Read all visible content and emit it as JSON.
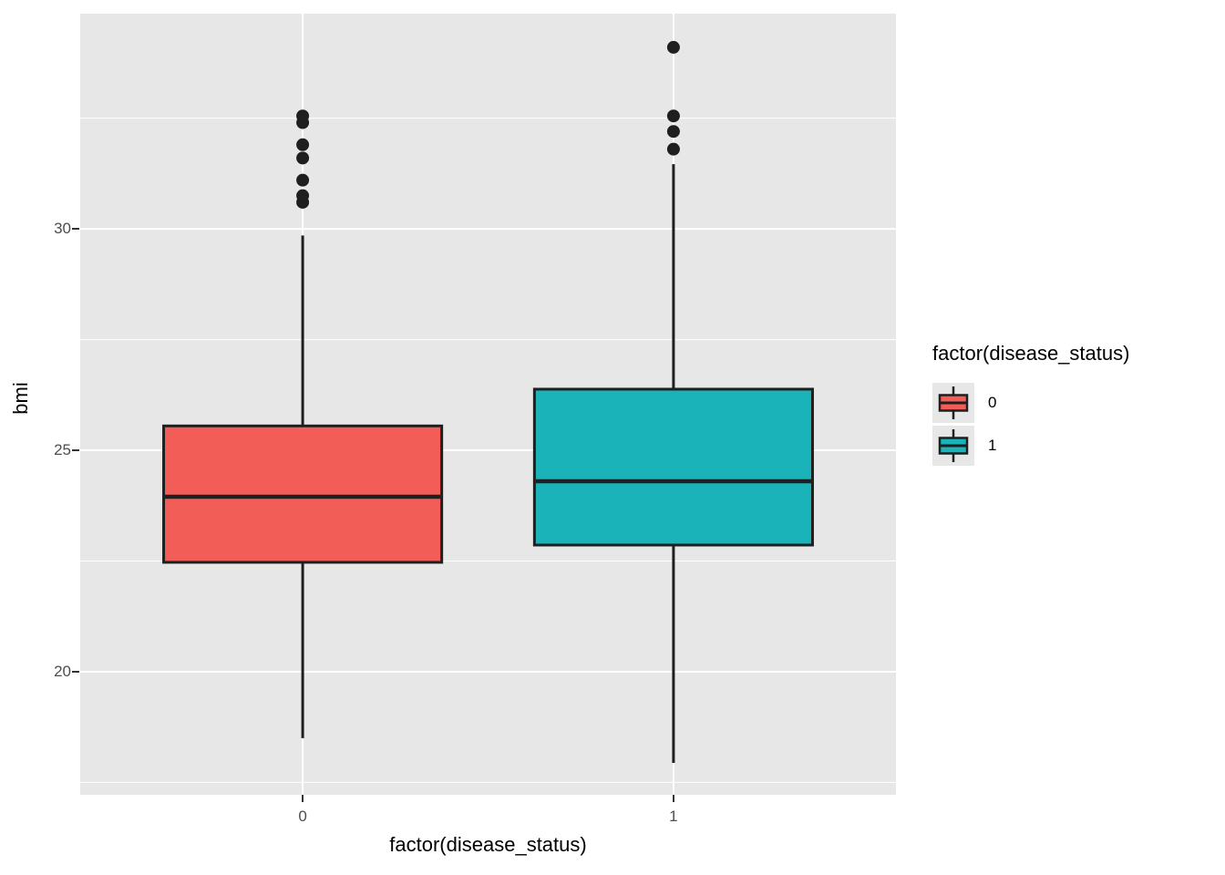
{
  "figure": {
    "background": "#FFFFFF",
    "panel_background": "#E7E7E7",
    "grid_color": "#FFFFFF",
    "stroke_color": "#1F1F1F",
    "tick_label_color": "#4D4D4D"
  },
  "chart_data": {
    "type": "boxplot",
    "title": "",
    "xlabel": "factor(disease_status)",
    "ylabel": "bmi",
    "categories": [
      "0",
      "1"
    ],
    "y_ticks": [
      20,
      25,
      30
    ],
    "y_minor_ticks": [
      17.5,
      22.5,
      27.5,
      32.5
    ],
    "ylim": [
      17.22,
      34.86
    ],
    "grid": true,
    "series": [
      {
        "name": "0",
        "fill": "#F25D58",
        "whisker_low": 18.5,
        "q1": 22.47,
        "median": 23.95,
        "q3": 25.55,
        "whisker_high": 29.85,
        "outliers": [
          30.6,
          30.75,
          31.1,
          31.6,
          31.9,
          32.4,
          32.55
        ]
      },
      {
        "name": "1",
        "fill": "#19B3B9",
        "whisker_low": 17.94,
        "q1": 22.86,
        "median": 24.3,
        "q3": 26.38,
        "whisker_high": 31.46,
        "outliers": [
          31.8,
          32.2,
          32.55,
          34.1
        ]
      }
    ],
    "legend": {
      "title": "factor(disease_status)",
      "position": "right",
      "entries": [
        {
          "label": "0",
          "color": "#F25D58"
        },
        {
          "label": "1",
          "color": "#19B3B9"
        }
      ]
    }
  }
}
